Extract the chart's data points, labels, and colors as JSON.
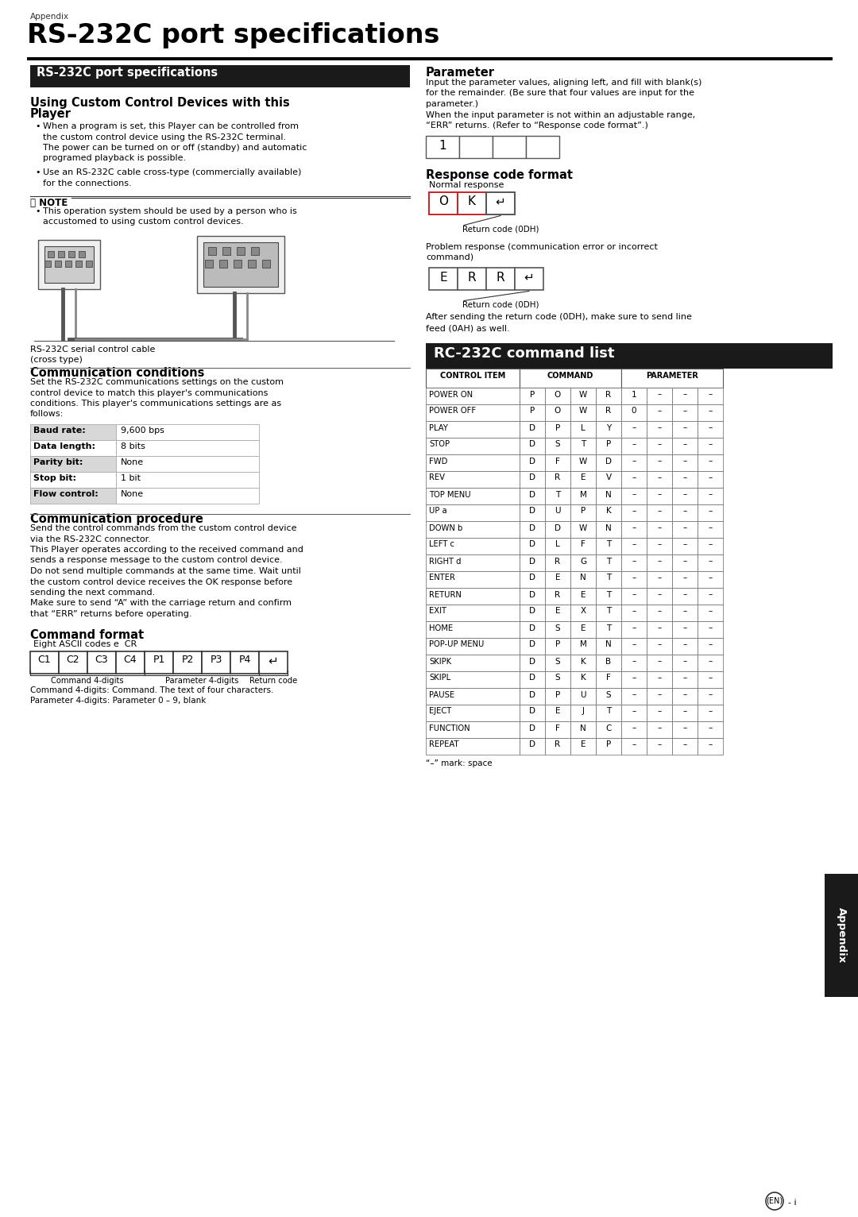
{
  "page_bg": "#ffffff",
  "header_text": "Appendix",
  "title": "RS-232C port specifications",
  "section1_header": "RS-232C port specifications",
  "section1_header_bg": "#1a1a1a",
  "section1_header_color": "#ffffff",
  "using_title": "Using Custom Control Devices with this\nPlayer",
  "bullet1_line1": "When a program is set, this Player can be controlled from",
  "bullet1_line2": "the custom control device using the RS-232C terminal.",
  "bullet1_line3": "The power can be turned on or off (standby) and automatic",
  "bullet1_line4": "programed playback is possible.",
  "bullet2_line1": "Use an RS-232C cable cross-type (commercially available)",
  "bullet2_line2": "for the connections.",
  "note_text_line1": "This operation system should be used by a person who is",
  "note_text_line2": "accustomed to using custom control devices.",
  "cable_caption1": "RS-232C serial control cable",
  "cable_caption2": "(cross type)",
  "comm_cond_title": "Communication conditions",
  "comm_cond_lines": [
    "Set the RS-232C communications settings on the custom",
    "control device to match this player's communications",
    "conditions. This player's communications settings are as",
    "follows:"
  ],
  "comm_table_rows": [
    [
      "Baud rate:",
      "9,600 bps"
    ],
    [
      "Data length:",
      "8 bits"
    ],
    [
      "Parity bit:",
      "None"
    ],
    [
      "Stop bit:",
      "1 bit"
    ],
    [
      "Flow control:",
      "None"
    ]
  ],
  "comm_proc_title": "Communication procedure",
  "comm_proc_lines": [
    "Send the control commands from the custom control device",
    "via the RS-232C connector.",
    "This Player operates according to the received command and",
    "sends a response message to the custom control device.",
    "Do not send multiple commands at the same time. Wait until",
    "the custom control device receives the OK response before",
    "sending the next command.",
    "Make sure to send “A” with the carriage return and confirm",
    "that “ERR” returns before operating."
  ],
  "cmd_format_title": "Command format",
  "cmd_format_sub": "Eight ASCII codes e  CR",
  "cmd_boxes": [
    "C1",
    "C2",
    "C3",
    "C4",
    "P1",
    "P2",
    "P3",
    "P4"
  ],
  "param_title": "Parameter",
  "param_lines": [
    "Input the parameter values, aligning left, and fill with blank(s)",
    "for the remainder. (Be sure that four values are input for the",
    "parameter.)",
    "When the input parameter is not within an adjustable range,",
    "“ERR” returns. (Refer to “Response code format”.)"
  ],
  "param_boxes": [
    "1",
    "",
    "",
    ""
  ],
  "resp_title": "Response code format",
  "resp_normal_label": "Normal response",
  "resp_ok_boxes": [
    "O",
    "K",
    "↵"
  ],
  "resp_return_caption": "Return code (0DH)",
  "resp_error_label": "Problem response (communication error or incorrect",
  "resp_error_label2": "command)",
  "resp_err_boxes": [
    "E",
    "R",
    "R",
    "↵"
  ],
  "resp_error_caption": "Return code (0DH)",
  "after_text1": "After sending the return code (0DH), make sure to send line",
  "after_text2": "feed (0AH) as well.",
  "rc232_header": "RC-232C command list",
  "rc232_header_bg": "#1a1a1a",
  "rc232_header_color": "#ffffff",
  "commands": [
    {
      "item": "POWER ON",
      "cmd": [
        "P",
        "O",
        "W",
        "R"
      ],
      "params": [
        "1",
        "–",
        "–",
        "–"
      ]
    },
    {
      "item": "POWER OFF",
      "cmd": [
        "P",
        "O",
        "W",
        "R"
      ],
      "params": [
        "0",
        "–",
        "–",
        "–"
      ]
    },
    {
      "item": "PLAY",
      "cmd": [
        "D",
        "P",
        "L",
        "Y"
      ],
      "params": [
        "–",
        "–",
        "–",
        "–"
      ]
    },
    {
      "item": "STOP",
      "cmd": [
        "D",
        "S",
        "T",
        "P"
      ],
      "params": [
        "–",
        "–",
        "–",
        "–"
      ]
    },
    {
      "item": "FWD",
      "cmd": [
        "D",
        "F",
        "W",
        "D"
      ],
      "params": [
        "–",
        "–",
        "–",
        "–"
      ]
    },
    {
      "item": "REV",
      "cmd": [
        "D",
        "R",
        "E",
        "V"
      ],
      "params": [
        "–",
        "–",
        "–",
        "–"
      ]
    },
    {
      "item": "TOP MENU",
      "cmd": [
        "D",
        "T",
        "M",
        "N"
      ],
      "params": [
        "–",
        "–",
        "–",
        "–"
      ]
    },
    {
      "item": "UP a",
      "cmd": [
        "D",
        "U",
        "P",
        "K"
      ],
      "params": [
        "–",
        "–",
        "–",
        "–"
      ]
    },
    {
      "item": "DOWN b",
      "cmd": [
        "D",
        "D",
        "W",
        "N"
      ],
      "params": [
        "–",
        "–",
        "–",
        "–"
      ]
    },
    {
      "item": "LEFT c",
      "cmd": [
        "D",
        "L",
        "F",
        "T"
      ],
      "params": [
        "–",
        "–",
        "–",
        "–"
      ]
    },
    {
      "item": "RIGHT d",
      "cmd": [
        "D",
        "R",
        "G",
        "T"
      ],
      "params": [
        "–",
        "–",
        "–",
        "–"
      ]
    },
    {
      "item": "ENTER",
      "cmd": [
        "D",
        "E",
        "N",
        "T"
      ],
      "params": [
        "–",
        "–",
        "–",
        "–"
      ]
    },
    {
      "item": "RETURN",
      "cmd": [
        "D",
        "R",
        "E",
        "T"
      ],
      "params": [
        "–",
        "–",
        "–",
        "–"
      ]
    },
    {
      "item": "EXIT",
      "cmd": [
        "D",
        "E",
        "X",
        "T"
      ],
      "params": [
        "–",
        "–",
        "–",
        "–"
      ]
    },
    {
      "item": "HOME",
      "cmd": [
        "D",
        "S",
        "E",
        "T"
      ],
      "params": [
        "–",
        "–",
        "–",
        "–"
      ]
    },
    {
      "item": "POP-UP MENU",
      "cmd": [
        "D",
        "P",
        "M",
        "N"
      ],
      "params": [
        "–",
        "–",
        "–",
        "–"
      ]
    },
    {
      "item": "SKIPK",
      "cmd": [
        "D",
        "S",
        "K",
        "B"
      ],
      "params": [
        "–",
        "–",
        "–",
        "–"
      ]
    },
    {
      "item": "SKIPL",
      "cmd": [
        "D",
        "S",
        "K",
        "F"
      ],
      "params": [
        "–",
        "–",
        "–",
        "–"
      ]
    },
    {
      "item": "PAUSE",
      "cmd": [
        "D",
        "P",
        "U",
        "S"
      ],
      "params": [
        "–",
        "–",
        "–",
        "–"
      ]
    },
    {
      "item": "EJECT",
      "cmd": [
        "D",
        "E",
        "J",
        "T"
      ],
      "params": [
        "–",
        "–",
        "–",
        "–"
      ]
    },
    {
      "item": "FUNCTION",
      "cmd": [
        "D",
        "F",
        "N",
        "C"
      ],
      "params": [
        "–",
        "–",
        "–",
        "–"
      ]
    },
    {
      "item": "REPEAT",
      "cmd": [
        "D",
        "R",
        "E",
        "P"
      ],
      "params": [
        "–",
        "–",
        "–",
        "–"
      ]
    }
  ],
  "table_footnote": "“–” mark: space",
  "appendix_label": "Appendix",
  "appendix_tab_color": "#1a1a1a",
  "appendix_tab_text_color": "#ffffff",
  "page_label": "(EN) - i"
}
